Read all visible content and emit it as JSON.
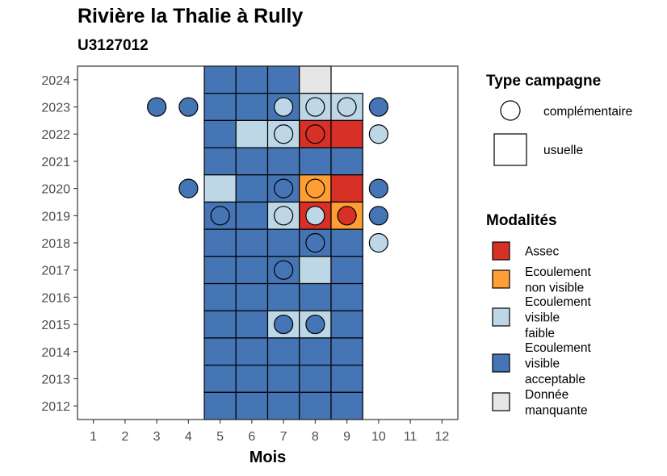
{
  "chart_data": {
    "type": "heatmap",
    "title": "Rivière la Thalie à Rully",
    "subtitle": "U3127012",
    "xlabel": "Mois",
    "ylabel": "",
    "x_ticks": [
      1,
      2,
      3,
      4,
      5,
      6,
      7,
      8,
      9,
      10,
      11,
      12
    ],
    "y_ticks": [
      2012,
      2013,
      2014,
      2015,
      2016,
      2017,
      2018,
      2019,
      2020,
      2021,
      2022,
      2023,
      2024
    ],
    "xlim": [
      0.5,
      12.5
    ],
    "ylim": [
      2011.5,
      2024.5
    ],
    "grid": false,
    "legend_placement": "right",
    "modalities": [
      {
        "key": "assec",
        "label_lines": [
          "Assec"
        ],
        "color": "#D73027"
      },
      {
        "key": "ecoulement_non_visible",
        "label_lines": [
          "Ecoulement",
          "non visible"
        ],
        "color": "#FE9E35"
      },
      {
        "key": "ecoulement_visible_faible",
        "label_lines": [
          "Ecoulement",
          "visible",
          "faible"
        ],
        "color": "#BDD7E7"
      },
      {
        "key": "ecoulement_visible_acceptable",
        "label_lines": [
          "Ecoulement",
          "visible",
          "acceptable"
        ],
        "color": "#4575B4"
      },
      {
        "key": "donnee_manquante",
        "label_lines": [
          "Donnée",
          "manquante"
        ],
        "color": "#E6E6E6"
      }
    ],
    "campaign_types": [
      {
        "key": "complementaire",
        "label": "complémentaire",
        "shape": "circle"
      },
      {
        "key": "usuelle",
        "label": "usuelle",
        "shape": "square"
      }
    ],
    "legend_titles": {
      "campaign": "Type campagne",
      "modality": "Modalités"
    },
    "usuelle": [
      {
        "year": 2024,
        "month": 5,
        "modality": "ecoulement_visible_acceptable"
      },
      {
        "year": 2024,
        "month": 6,
        "modality": "ecoulement_visible_acceptable"
      },
      {
        "year": 2024,
        "month": 7,
        "modality": "ecoulement_visible_acceptable"
      },
      {
        "year": 2024,
        "month": 8,
        "modality": "donnee_manquante"
      },
      {
        "year": 2023,
        "month": 5,
        "modality": "ecoulement_visible_acceptable"
      },
      {
        "year": 2023,
        "month": 6,
        "modality": "ecoulement_visible_acceptable"
      },
      {
        "year": 2023,
        "month": 7,
        "modality": "ecoulement_visible_acceptable"
      },
      {
        "year": 2023,
        "month": 8,
        "modality": "ecoulement_visible_faible"
      },
      {
        "year": 2023,
        "month": 9,
        "modality": "ecoulement_visible_faible"
      },
      {
        "year": 2022,
        "month": 5,
        "modality": "ecoulement_visible_acceptable"
      },
      {
        "year": 2022,
        "month": 6,
        "modality": "ecoulement_visible_faible"
      },
      {
        "year": 2022,
        "month": 7,
        "modality": "ecoulement_visible_faible"
      },
      {
        "year": 2022,
        "month": 8,
        "modality": "assec"
      },
      {
        "year": 2022,
        "month": 9,
        "modality": "assec"
      },
      {
        "year": 2021,
        "month": 5,
        "modality": "ecoulement_visible_acceptable"
      },
      {
        "year": 2021,
        "month": 6,
        "modality": "ecoulement_visible_acceptable"
      },
      {
        "year": 2021,
        "month": 7,
        "modality": "ecoulement_visible_acceptable"
      },
      {
        "year": 2021,
        "month": 8,
        "modality": "ecoulement_visible_acceptable"
      },
      {
        "year": 2021,
        "month": 9,
        "modality": "ecoulement_visible_acceptable"
      },
      {
        "year": 2020,
        "month": 5,
        "modality": "ecoulement_visible_faible"
      },
      {
        "year": 2020,
        "month": 6,
        "modality": "ecoulement_visible_acceptable"
      },
      {
        "year": 2020,
        "month": 7,
        "modality": "ecoulement_visible_acceptable"
      },
      {
        "year": 2020,
        "month": 8,
        "modality": "ecoulement_non_visible"
      },
      {
        "year": 2020,
        "month": 9,
        "modality": "assec"
      },
      {
        "year": 2019,
        "month": 5,
        "modality": "ecoulement_visible_acceptable"
      },
      {
        "year": 2019,
        "month": 6,
        "modality": "ecoulement_visible_acceptable"
      },
      {
        "year": 2019,
        "month": 7,
        "modality": "ecoulement_visible_faible"
      },
      {
        "year": 2019,
        "month": 8,
        "modality": "assec"
      },
      {
        "year": 2019,
        "month": 9,
        "modality": "ecoulement_non_visible"
      },
      {
        "year": 2018,
        "month": 5,
        "modality": "ecoulement_visible_acceptable"
      },
      {
        "year": 2018,
        "month": 6,
        "modality": "ecoulement_visible_acceptable"
      },
      {
        "year": 2018,
        "month": 7,
        "modality": "ecoulement_visible_acceptable"
      },
      {
        "year": 2018,
        "month": 8,
        "modality": "ecoulement_visible_acceptable"
      },
      {
        "year": 2018,
        "month": 9,
        "modality": "ecoulement_visible_acceptable"
      },
      {
        "year": 2017,
        "month": 5,
        "modality": "ecoulement_visible_acceptable"
      },
      {
        "year": 2017,
        "month": 6,
        "modality": "ecoulement_visible_acceptable"
      },
      {
        "year": 2017,
        "month": 7,
        "modality": "ecoulement_visible_acceptable"
      },
      {
        "year": 2017,
        "month": 8,
        "modality": "ecoulement_visible_faible"
      },
      {
        "year": 2017,
        "month": 9,
        "modality": "ecoulement_visible_acceptable"
      },
      {
        "year": 2016,
        "month": 5,
        "modality": "ecoulement_visible_acceptable"
      },
      {
        "year": 2016,
        "month": 6,
        "modality": "ecoulement_visible_acceptable"
      },
      {
        "year": 2016,
        "month": 7,
        "modality": "ecoulement_visible_acceptable"
      },
      {
        "year": 2016,
        "month": 8,
        "modality": "ecoulement_visible_acceptable"
      },
      {
        "year": 2016,
        "month": 9,
        "modality": "ecoulement_visible_acceptable"
      },
      {
        "year": 2015,
        "month": 5,
        "modality": "ecoulement_visible_acceptable"
      },
      {
        "year": 2015,
        "month": 6,
        "modality": "ecoulement_visible_acceptable"
      },
      {
        "year": 2015,
        "month": 7,
        "modality": "ecoulement_visible_faible"
      },
      {
        "year": 2015,
        "month": 8,
        "modality": "ecoulement_visible_faible"
      },
      {
        "year": 2015,
        "month": 9,
        "modality": "ecoulement_visible_acceptable"
      },
      {
        "year": 2014,
        "month": 5,
        "modality": "ecoulement_visible_acceptable"
      },
      {
        "year": 2014,
        "month": 6,
        "modality": "ecoulement_visible_acceptable"
      },
      {
        "year": 2014,
        "month": 7,
        "modality": "ecoulement_visible_acceptable"
      },
      {
        "year": 2014,
        "month": 8,
        "modality": "ecoulement_visible_acceptable"
      },
      {
        "year": 2014,
        "month": 9,
        "modality": "ecoulement_visible_acceptable"
      },
      {
        "year": 2013,
        "month": 5,
        "modality": "ecoulement_visible_acceptable"
      },
      {
        "year": 2013,
        "month": 6,
        "modality": "ecoulement_visible_acceptable"
      },
      {
        "year": 2013,
        "month": 7,
        "modality": "ecoulement_visible_acceptable"
      },
      {
        "year": 2013,
        "month": 8,
        "modality": "ecoulement_visible_acceptable"
      },
      {
        "year": 2013,
        "month": 9,
        "modality": "ecoulement_visible_acceptable"
      },
      {
        "year": 2012,
        "month": 5,
        "modality": "ecoulement_visible_acceptable"
      },
      {
        "year": 2012,
        "month": 6,
        "modality": "ecoulement_visible_acceptable"
      },
      {
        "year": 2012,
        "month": 7,
        "modality": "ecoulement_visible_acceptable"
      },
      {
        "year": 2012,
        "month": 8,
        "modality": "ecoulement_visible_acceptable"
      },
      {
        "year": 2012,
        "month": 9,
        "modality": "ecoulement_visible_acceptable"
      }
    ],
    "complementaire": [
      {
        "year": 2023,
        "month": 3,
        "modality": "ecoulement_visible_acceptable"
      },
      {
        "year": 2023,
        "month": 4,
        "modality": "ecoulement_visible_acceptable"
      },
      {
        "year": 2023,
        "month": 7,
        "modality": "ecoulement_visible_faible"
      },
      {
        "year": 2023,
        "month": 8,
        "modality": "ecoulement_visible_faible"
      },
      {
        "year": 2023,
        "month": 9,
        "modality": "ecoulement_visible_faible"
      },
      {
        "year": 2023,
        "month": 10,
        "modality": "ecoulement_visible_acceptable"
      },
      {
        "year": 2022,
        "month": 7,
        "modality": "ecoulement_visible_faible"
      },
      {
        "year": 2022,
        "month": 8,
        "modality": "assec"
      },
      {
        "year": 2022,
        "month": 10,
        "modality": "ecoulement_visible_faible"
      },
      {
        "year": 2020,
        "month": 4,
        "modality": "ecoulement_visible_acceptable"
      },
      {
        "year": 2020,
        "month": 7,
        "modality": "ecoulement_visible_acceptable"
      },
      {
        "year": 2020,
        "month": 8,
        "modality": "ecoulement_non_visible"
      },
      {
        "year": 2020,
        "month": 10,
        "modality": "ecoulement_visible_acceptable"
      },
      {
        "year": 2019,
        "month": 5,
        "modality": "ecoulement_visible_acceptable"
      },
      {
        "year": 2019,
        "month": 7,
        "modality": "ecoulement_visible_faible"
      },
      {
        "year": 2019,
        "month": 8,
        "modality": "ecoulement_visible_faible"
      },
      {
        "year": 2019,
        "month": 9,
        "modality": "assec"
      },
      {
        "year": 2019,
        "month": 10,
        "modality": "ecoulement_visible_acceptable"
      },
      {
        "year": 2018,
        "month": 8,
        "modality": "ecoulement_visible_acceptable"
      },
      {
        "year": 2018,
        "month": 10,
        "modality": "ecoulement_visible_faible"
      },
      {
        "year": 2017,
        "month": 7,
        "modality": "ecoulement_visible_acceptable"
      },
      {
        "year": 2015,
        "month": 7,
        "modality": "ecoulement_visible_acceptable"
      },
      {
        "year": 2015,
        "month": 8,
        "modality": "ecoulement_visible_acceptable"
      }
    ]
  }
}
